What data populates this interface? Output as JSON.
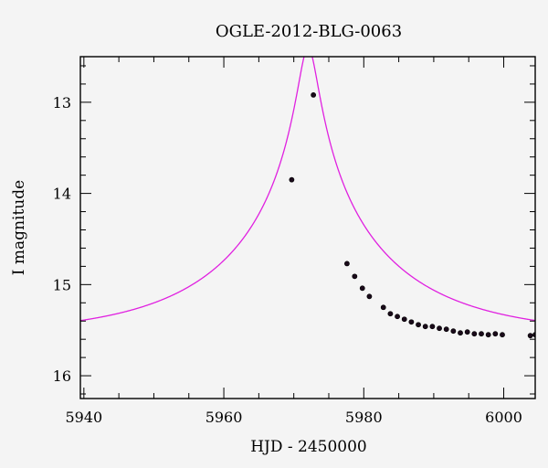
{
  "chart_data": {
    "type": "scatter",
    "title": "OGLE-2012-BLG-0063",
    "xlabel": "HJD - 2450000",
    "ylabel": "I magnitude",
    "xlim": [
      5939.5,
      6004.5
    ],
    "ylim": [
      16.25,
      12.5
    ],
    "y_inverted": true,
    "x_ticks": [
      5940,
      5960,
      5980,
      6000
    ],
    "y_ticks": [
      13,
      14,
      15,
      16
    ],
    "x_minor_step": 5,
    "y_minor_step": 0.2,
    "grid": false,
    "colors": {
      "model": "#e020e0",
      "points": "#1a0a1a",
      "background": "#f4f4f4",
      "axes": "#000000"
    },
    "model": {
      "t0": 5972.05,
      "baseline": 15.56,
      "peak": 12.4,
      "u0": 0.055,
      "tE": 23.5
    },
    "points": [
      {
        "x": 5969.7,
        "y": 13.85
      },
      {
        "x": 5972.8,
        "y": 12.92
      },
      {
        "x": 5977.6,
        "y": 14.77
      },
      {
        "x": 5978.7,
        "y": 14.91
      },
      {
        "x": 5979.8,
        "y": 15.04
      },
      {
        "x": 5980.8,
        "y": 15.13
      },
      {
        "x": 5982.8,
        "y": 15.25
      },
      {
        "x": 5983.8,
        "y": 15.32
      },
      {
        "x": 5984.8,
        "y": 15.35
      },
      {
        "x": 5985.8,
        "y": 15.38
      },
      {
        "x": 5986.8,
        "y": 15.41
      },
      {
        "x": 5987.8,
        "y": 15.44
      },
      {
        "x": 5988.8,
        "y": 15.46
      },
      {
        "x": 5989.8,
        "y": 15.46
      },
      {
        "x": 5990.8,
        "y": 15.48
      },
      {
        "x": 5991.8,
        "y": 15.49
      },
      {
        "x": 5992.8,
        "y": 15.51
      },
      {
        "x": 5993.8,
        "y": 15.53
      },
      {
        "x": 5994.8,
        "y": 15.52
      },
      {
        "x": 5995.8,
        "y": 15.54
      },
      {
        "x": 5996.8,
        "y": 15.54
      },
      {
        "x": 5997.8,
        "y": 15.55
      },
      {
        "x": 5998.8,
        "y": 15.54
      },
      {
        "x": 5999.8,
        "y": 15.55
      },
      {
        "x": 6003.8,
        "y": 15.56
      },
      {
        "x": 6004.5,
        "y": 15.55
      }
    ]
  }
}
